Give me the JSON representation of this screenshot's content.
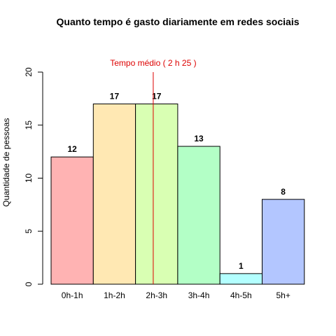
{
  "chart_data": {
    "type": "bar",
    "title": "Quanto tempo é gasto diariamente em redes sociais",
    "xlabel": "",
    "ylabel": "Quantidade de pessoas",
    "categories": [
      "0h-1h",
      "1h-2h",
      "2h-3h",
      "3h-4h",
      "4h-5h",
      "5h+"
    ],
    "values": [
      12,
      17,
      17,
      13,
      1,
      8
    ],
    "colors": [
      "#ffb3b3",
      "#ffe8b3",
      "#d9ffb3",
      "#b3ffc6",
      "#b3ffff",
      "#b3c6ff"
    ],
    "ylim": [
      0,
      20
    ],
    "yticks": [
      0,
      5,
      10,
      15,
      20
    ],
    "grid": false,
    "annotation": {
      "text": "Tempo médio ( 2 h 25 )",
      "color": "#dd0000",
      "x_category_position": 2.42
    }
  }
}
